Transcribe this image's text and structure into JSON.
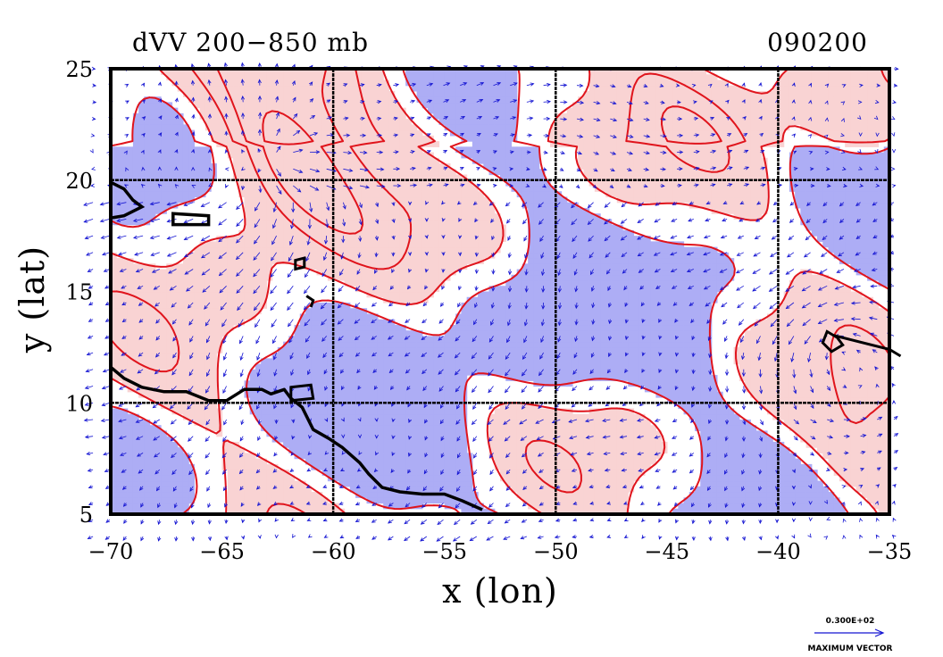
{
  "chart_data": {
    "type": "vector-field-contour-map",
    "title": "dVV 200−850 mb",
    "timestamp": "090200",
    "xlabel": "x (lon)",
    "ylabel": "y (lat)",
    "xlim": [
      -70,
      -35
    ],
    "ylim": [
      5,
      25
    ],
    "x_ticks": [
      -70,
      -65,
      -60,
      -55,
      -50,
      -45,
      -40,
      -35
    ],
    "x_tick_labels": [
      "−70",
      "−65",
      "−60",
      "−55",
      "−50",
      "−45",
      "−40",
      "−35"
    ],
    "y_ticks": [
      5,
      10,
      15,
      20,
      25
    ],
    "y_tick_labels": [
      "5",
      "10",
      "15",
      "20",
      "25"
    ],
    "grid_lon": [
      -60,
      -50,
      -40
    ],
    "grid_lat": [
      10,
      20
    ],
    "grid": true,
    "colors": {
      "positive_fill": "#f9d3d3",
      "negative_fill": "#adadf5",
      "contour": "#e0141c",
      "vector": "#1414d2",
      "coast": "#000000"
    },
    "divergence_center": [
      -62.5,
      20.8
    ],
    "cyclone_center": [
      -37.5,
      12.6
    ],
    "vector_legend": {
      "value_label": "0.300E+02",
      "caption": "MAXIMUM VECTOR"
    }
  }
}
